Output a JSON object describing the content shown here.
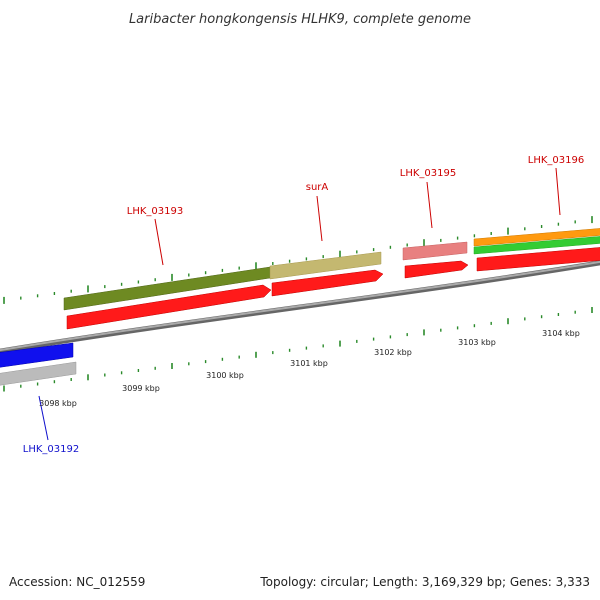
{
  "title": "Laribacter hongkongensis HLHK9, complete genome",
  "footer": {
    "accession": "Accession: NC_012559",
    "stats": "Topology: circular; Length: 3,169,329 bp; Genes: 3,333"
  },
  "colors": {
    "backbone": "#888888",
    "tick": "#2a8a2a",
    "cds_forward": "#ff1a1a",
    "cds_blue": "#1010ee",
    "cds_grey": "#bbbbbb",
    "feature_olive": "#6e8a22",
    "feature_khaki": "#c4b870",
    "feature_pink": "#e88080",
    "feature_orange": "#ff9a10",
    "feature_green": "#33cc33",
    "label_red": "#cc0000",
    "label_blue": "#1010cc"
  },
  "tick_labels": [
    "3098 kbp",
    "3099 kbp",
    "3100 kbp",
    "3101 kbp",
    "3102 kbp",
    "3103 kbp",
    "3104 kbp"
  ],
  "gene_labels": [
    {
      "text": "LHK_03193",
      "color": "label_red"
    },
    {
      "text": "surA",
      "color": "label_red"
    },
    {
      "text": "LHK_03195",
      "color": "label_red"
    },
    {
      "text": "LHK_03196",
      "color": "label_red"
    },
    {
      "text": "LHK_03192",
      "color": "label_blue"
    }
  ]
}
